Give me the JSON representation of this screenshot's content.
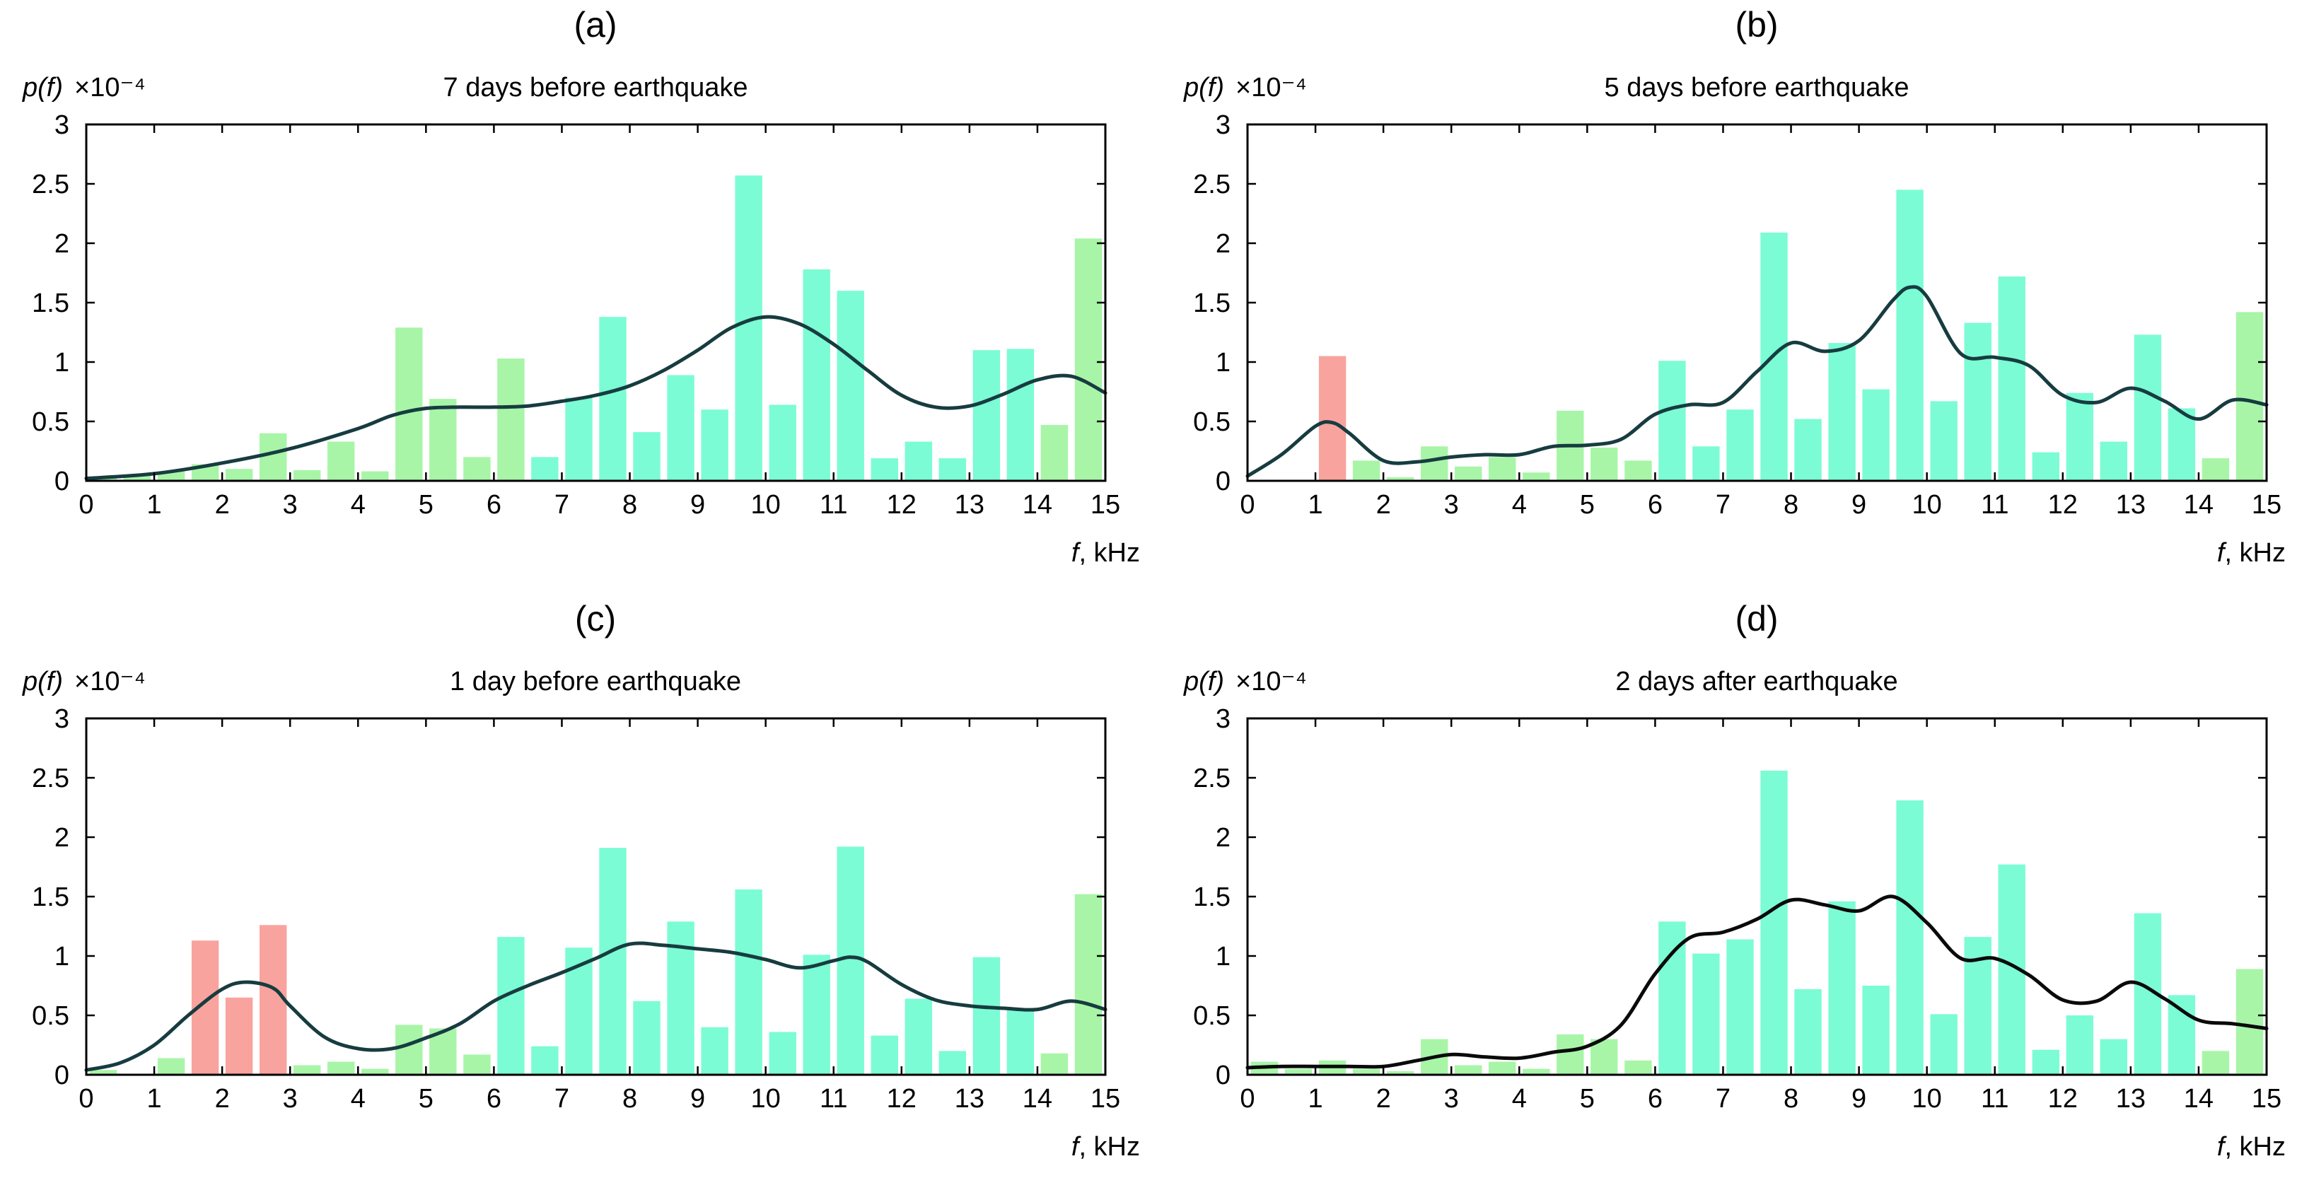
{
  "chart_data": [
    {
      "type": "bar",
      "panel_label": "(a)",
      "title": "7 days before earthquake",
      "ylabel": "p(f)",
      "ylabel_multiplier": "×10⁻⁴",
      "xlabel_var": "f",
      "xlabel_unit": ", kHz",
      "xlim": [
        0,
        15
      ],
      "ylim": [
        0,
        3
      ],
      "xticks": [
        "0",
        "1",
        "2",
        "3",
        "4",
        "5",
        "6",
        "7",
        "8",
        "9",
        "10",
        "11",
        "12",
        "13",
        "14",
        "15"
      ],
      "yticks": [
        "0",
        "0.5",
        "1",
        "1.5",
        "2",
        "2.5",
        "3"
      ],
      "bin_width": 0.5,
      "bars": [
        {
          "x": 0.25,
          "value": 0.02,
          "color": "#a8f5a8"
        },
        {
          "x": 0.75,
          "value": 0.04,
          "color": "#a8f5a8"
        },
        {
          "x": 1.25,
          "value": 0.08,
          "color": "#a8f5a8"
        },
        {
          "x": 1.75,
          "value": 0.14,
          "color": "#a8f5a8"
        },
        {
          "x": 2.25,
          "value": 0.1,
          "color": "#a8f5a8"
        },
        {
          "x": 2.75,
          "value": 0.4,
          "color": "#a8f5a8"
        },
        {
          "x": 3.25,
          "value": 0.09,
          "color": "#a8f5a8"
        },
        {
          "x": 3.75,
          "value": 0.33,
          "color": "#a8f5a8"
        },
        {
          "x": 4.25,
          "value": 0.08,
          "color": "#a8f5a8"
        },
        {
          "x": 4.75,
          "value": 1.29,
          "color": "#a8f5a8"
        },
        {
          "x": 5.25,
          "value": 0.69,
          "color": "#a8f5a8"
        },
        {
          "x": 5.75,
          "value": 0.2,
          "color": "#a8f5a8"
        },
        {
          "x": 6.25,
          "value": 1.03,
          "color": "#a8f5a8"
        },
        {
          "x": 6.75,
          "value": 0.2,
          "color": "#7cfcd4"
        },
        {
          "x": 7.25,
          "value": 0.7,
          "color": "#7cfcd4"
        },
        {
          "x": 7.75,
          "value": 1.38,
          "color": "#7cfcd4"
        },
        {
          "x": 8.25,
          "value": 0.41,
          "color": "#7cfcd4"
        },
        {
          "x": 8.75,
          "value": 0.89,
          "color": "#7cfcd4"
        },
        {
          "x": 9.25,
          "value": 0.6,
          "color": "#7cfcd4"
        },
        {
          "x": 9.75,
          "value": 2.57,
          "color": "#7cfcd4"
        },
        {
          "x": 10.25,
          "value": 0.64,
          "color": "#7cfcd4"
        },
        {
          "x": 10.75,
          "value": 1.78,
          "color": "#7cfcd4"
        },
        {
          "x": 11.25,
          "value": 1.6,
          "color": "#7cfcd4"
        },
        {
          "x": 11.75,
          "value": 0.19,
          "color": "#7cfcd4"
        },
        {
          "x": 12.25,
          "value": 0.33,
          "color": "#7cfcd4"
        },
        {
          "x": 12.75,
          "value": 0.19,
          "color": "#7cfcd4"
        },
        {
          "x": 13.25,
          "value": 1.1,
          "color": "#7cfcd4"
        },
        {
          "x": 13.75,
          "value": 1.11,
          "color": "#7cfcd4"
        },
        {
          "x": 14.25,
          "value": 0.47,
          "color": "#a8f5a8"
        },
        {
          "x": 14.75,
          "value": 2.04,
          "color": "#a8f5a8"
        }
      ],
      "curve": {
        "color": "#173c40",
        "x": [
          0,
          1,
          2,
          3,
          4,
          4.5,
          5,
          5.5,
          6,
          6.5,
          7,
          7.5,
          8,
          8.5,
          9,
          9.5,
          10,
          10.5,
          11,
          11.5,
          12,
          12.5,
          13,
          13.5,
          14,
          14.5,
          15
        ],
        "y": [
          0.02,
          0.06,
          0.15,
          0.27,
          0.44,
          0.55,
          0.61,
          0.62,
          0.62,
          0.63,
          0.67,
          0.72,
          0.8,
          0.93,
          1.1,
          1.29,
          1.38,
          1.32,
          1.15,
          0.93,
          0.72,
          0.62,
          0.63,
          0.73,
          0.85,
          0.88,
          0.74
        ]
      }
    },
    {
      "type": "bar",
      "panel_label": "(b)",
      "title": "5 days before earthquake",
      "ylabel": "p(f)",
      "ylabel_multiplier": "×10⁻⁴",
      "xlabel_var": "f",
      "xlabel_unit": ", kHz",
      "xlim": [
        0,
        15
      ],
      "ylim": [
        0,
        3
      ],
      "xticks": [
        "0",
        "1",
        "2",
        "3",
        "4",
        "5",
        "6",
        "7",
        "8",
        "9",
        "10",
        "11",
        "12",
        "13",
        "14",
        "15"
      ],
      "yticks": [
        "0",
        "0.5",
        "1",
        "1.5",
        "2",
        "2.5",
        "3"
      ],
      "bin_width": 0.5,
      "bars": [
        {
          "x": 1.25,
          "value": 1.05,
          "color": "#f8a39d"
        },
        {
          "x": 1.75,
          "value": 0.17,
          "color": "#a8f5a8"
        },
        {
          "x": 2.25,
          "value": 0.03,
          "color": "#a8f5a8"
        },
        {
          "x": 2.75,
          "value": 0.29,
          "color": "#a8f5a8"
        },
        {
          "x": 3.25,
          "value": 0.12,
          "color": "#a8f5a8"
        },
        {
          "x": 3.75,
          "value": 0.2,
          "color": "#a8f5a8"
        },
        {
          "x": 4.25,
          "value": 0.07,
          "color": "#a8f5a8"
        },
        {
          "x": 4.75,
          "value": 0.59,
          "color": "#a8f5a8"
        },
        {
          "x": 5.25,
          "value": 0.28,
          "color": "#a8f5a8"
        },
        {
          "x": 5.75,
          "value": 0.17,
          "color": "#a8f5a8"
        },
        {
          "x": 6.25,
          "value": 1.01,
          "color": "#7cfcd4"
        },
        {
          "x": 6.75,
          "value": 0.29,
          "color": "#7cfcd4"
        },
        {
          "x": 7.25,
          "value": 0.6,
          "color": "#7cfcd4"
        },
        {
          "x": 7.75,
          "value": 2.09,
          "color": "#7cfcd4"
        },
        {
          "x": 8.25,
          "value": 0.52,
          "color": "#7cfcd4"
        },
        {
          "x": 8.75,
          "value": 1.16,
          "color": "#7cfcd4"
        },
        {
          "x": 9.25,
          "value": 0.77,
          "color": "#7cfcd4"
        },
        {
          "x": 9.75,
          "value": 2.45,
          "color": "#7cfcd4"
        },
        {
          "x": 10.25,
          "value": 0.67,
          "color": "#7cfcd4"
        },
        {
          "x": 10.75,
          "value": 1.33,
          "color": "#7cfcd4"
        },
        {
          "x": 11.25,
          "value": 1.72,
          "color": "#7cfcd4"
        },
        {
          "x": 11.75,
          "value": 0.24,
          "color": "#7cfcd4"
        },
        {
          "x": 12.25,
          "value": 0.74,
          "color": "#7cfcd4"
        },
        {
          "x": 12.75,
          "value": 0.33,
          "color": "#7cfcd4"
        },
        {
          "x": 13.25,
          "value": 1.23,
          "color": "#7cfcd4"
        },
        {
          "x": 13.75,
          "value": 0.61,
          "color": "#7cfcd4"
        },
        {
          "x": 14.25,
          "value": 0.19,
          "color": "#a8f5a8"
        },
        {
          "x": 14.75,
          "value": 1.42,
          "color": "#a8f5a8"
        }
      ],
      "curve": {
        "color": "#173c40",
        "x": [
          0,
          0.5,
          1,
          1.25,
          1.5,
          2,
          2.5,
          3,
          3.5,
          4,
          4.5,
          5,
          5.5,
          6,
          6.5,
          7,
          7.5,
          8,
          8.5,
          9,
          9.5,
          9.75,
          10,
          10.5,
          11,
          11.5,
          12,
          12.5,
          13,
          13.5,
          14,
          14.5,
          15
        ],
        "y": [
          0.04,
          0.22,
          0.46,
          0.49,
          0.4,
          0.17,
          0.16,
          0.2,
          0.22,
          0.22,
          0.29,
          0.3,
          0.35,
          0.56,
          0.64,
          0.66,
          0.92,
          1.16,
          1.09,
          1.18,
          1.52,
          1.63,
          1.55,
          1.07,
          1.04,
          0.97,
          0.72,
          0.66,
          0.78,
          0.67,
          0.52,
          0.68,
          0.64
        ]
      }
    },
    {
      "type": "bar",
      "panel_label": "(c)",
      "title": "1 day before earthquake",
      "ylabel": "p(f)",
      "ylabel_multiplier": "×10⁻⁴",
      "xlabel_var": "f",
      "xlabel_unit": ", kHz",
      "xlim": [
        0,
        15
      ],
      "ylim": [
        0,
        3
      ],
      "xticks": [
        "0",
        "1",
        "2",
        "3",
        "4",
        "5",
        "6",
        "7",
        "8",
        "9",
        "10",
        "11",
        "12",
        "13",
        "14",
        "15"
      ],
      "yticks": [
        "0",
        "0.5",
        "1",
        "1.5",
        "2",
        "2.5",
        "3"
      ],
      "bin_width": 0.5,
      "bars": [
        {
          "x": 0.25,
          "value": 0.04,
          "color": "#a8f5a8"
        },
        {
          "x": 1.25,
          "value": 0.14,
          "color": "#a8f5a8"
        },
        {
          "x": 1.75,
          "value": 1.13,
          "color": "#f8a39d"
        },
        {
          "x": 2.25,
          "value": 0.65,
          "color": "#f8a39d"
        },
        {
          "x": 2.75,
          "value": 1.26,
          "color": "#f8a39d"
        },
        {
          "x": 3.25,
          "value": 0.08,
          "color": "#a8f5a8"
        },
        {
          "x": 3.75,
          "value": 0.11,
          "color": "#a8f5a8"
        },
        {
          "x": 4.25,
          "value": 0.05,
          "color": "#a8f5a8"
        },
        {
          "x": 4.75,
          "value": 0.42,
          "color": "#a8f5a8"
        },
        {
          "x": 5.25,
          "value": 0.39,
          "color": "#a8f5a8"
        },
        {
          "x": 5.75,
          "value": 0.17,
          "color": "#a8f5a8"
        },
        {
          "x": 6.25,
          "value": 1.16,
          "color": "#7cfcd4"
        },
        {
          "x": 6.75,
          "value": 0.24,
          "color": "#7cfcd4"
        },
        {
          "x": 7.25,
          "value": 1.07,
          "color": "#7cfcd4"
        },
        {
          "x": 7.75,
          "value": 1.91,
          "color": "#7cfcd4"
        },
        {
          "x": 8.25,
          "value": 0.62,
          "color": "#7cfcd4"
        },
        {
          "x": 8.75,
          "value": 1.29,
          "color": "#7cfcd4"
        },
        {
          "x": 9.25,
          "value": 0.4,
          "color": "#7cfcd4"
        },
        {
          "x": 9.75,
          "value": 1.56,
          "color": "#7cfcd4"
        },
        {
          "x": 10.25,
          "value": 0.36,
          "color": "#7cfcd4"
        },
        {
          "x": 10.75,
          "value": 1.01,
          "color": "#7cfcd4"
        },
        {
          "x": 11.25,
          "value": 1.92,
          "color": "#7cfcd4"
        },
        {
          "x": 11.75,
          "value": 0.33,
          "color": "#7cfcd4"
        },
        {
          "x": 12.25,
          "value": 0.64,
          "color": "#7cfcd4"
        },
        {
          "x": 12.75,
          "value": 0.2,
          "color": "#7cfcd4"
        },
        {
          "x": 13.25,
          "value": 0.99,
          "color": "#7cfcd4"
        },
        {
          "x": 13.75,
          "value": 0.56,
          "color": "#7cfcd4"
        },
        {
          "x": 14.25,
          "value": 0.18,
          "color": "#a8f5a8"
        },
        {
          "x": 14.75,
          "value": 1.52,
          "color": "#a8f5a8"
        }
      ],
      "curve": {
        "color": "#173c40",
        "x": [
          0,
          0.5,
          1,
          1.5,
          2,
          2.35,
          2.75,
          3,
          3.5,
          4,
          4.5,
          5,
          5.5,
          6,
          6.5,
          7,
          7.5,
          8,
          8.5,
          9,
          9.5,
          10,
          10.5,
          11,
          11.25,
          11.5,
          12,
          12.5,
          13,
          13.5,
          14,
          14.5,
          15
        ],
        "y": [
          0.04,
          0.1,
          0.25,
          0.5,
          0.72,
          0.78,
          0.73,
          0.58,
          0.32,
          0.22,
          0.22,
          0.31,
          0.43,
          0.62,
          0.75,
          0.86,
          0.98,
          1.1,
          1.09,
          1.06,
          1.03,
          0.97,
          0.9,
          0.96,
          0.99,
          0.95,
          0.76,
          0.63,
          0.58,
          0.56,
          0.55,
          0.62,
          0.55
        ]
      }
    },
    {
      "type": "bar",
      "panel_label": "(d)",
      "title": "2 days after earthquake",
      "ylabel": "p(f)",
      "ylabel_multiplier": "×10⁻⁴",
      "xlabel_var": "f",
      "xlabel_unit": ", kHz",
      "xlim": [
        0,
        15
      ],
      "ylim": [
        0,
        3
      ],
      "xticks": [
        "0",
        "1",
        "2",
        "3",
        "4",
        "5",
        "6",
        "7",
        "8",
        "9",
        "10",
        "11",
        "12",
        "13",
        "14",
        "15"
      ],
      "yticks": [
        "0",
        "0.5",
        "1",
        "1.5",
        "2",
        "2.5",
        "3"
      ],
      "bin_width": 0.5,
      "bars": [
        {
          "x": 0.25,
          "value": 0.11,
          "color": "#a8f5a8"
        },
        {
          "x": 0.75,
          "value": 0.05,
          "color": "#a8f5a8"
        },
        {
          "x": 1.25,
          "value": 0.12,
          "color": "#a8f5a8"
        },
        {
          "x": 1.75,
          "value": 0.05,
          "color": "#a8f5a8"
        },
        {
          "x": 2.25,
          "value": 0.03,
          "color": "#a8f5a8"
        },
        {
          "x": 2.75,
          "value": 0.3,
          "color": "#a8f5a8"
        },
        {
          "x": 3.25,
          "value": 0.08,
          "color": "#a8f5a8"
        },
        {
          "x": 3.75,
          "value": 0.11,
          "color": "#a8f5a8"
        },
        {
          "x": 4.25,
          "value": 0.05,
          "color": "#a8f5a8"
        },
        {
          "x": 4.75,
          "value": 0.34,
          "color": "#a8f5a8"
        },
        {
          "x": 5.25,
          "value": 0.3,
          "color": "#a8f5a8"
        },
        {
          "x": 5.75,
          "value": 0.12,
          "color": "#a8f5a8"
        },
        {
          "x": 6.25,
          "value": 1.29,
          "color": "#7cfcd4"
        },
        {
          "x": 6.75,
          "value": 1.02,
          "color": "#7cfcd4"
        },
        {
          "x": 7.25,
          "value": 1.14,
          "color": "#7cfcd4"
        },
        {
          "x": 7.75,
          "value": 2.56,
          "color": "#7cfcd4"
        },
        {
          "x": 8.25,
          "value": 0.72,
          "color": "#7cfcd4"
        },
        {
          "x": 8.75,
          "value": 1.46,
          "color": "#7cfcd4"
        },
        {
          "x": 9.25,
          "value": 0.75,
          "color": "#7cfcd4"
        },
        {
          "x": 9.75,
          "value": 2.31,
          "color": "#7cfcd4"
        },
        {
          "x": 10.25,
          "value": 0.51,
          "color": "#7cfcd4"
        },
        {
          "x": 10.75,
          "value": 1.16,
          "color": "#7cfcd4"
        },
        {
          "x": 11.25,
          "value": 1.77,
          "color": "#7cfcd4"
        },
        {
          "x": 11.75,
          "value": 0.21,
          "color": "#7cfcd4"
        },
        {
          "x": 12.25,
          "value": 0.5,
          "color": "#7cfcd4"
        },
        {
          "x": 12.75,
          "value": 0.3,
          "color": "#7cfcd4"
        },
        {
          "x": 13.25,
          "value": 1.36,
          "color": "#7cfcd4"
        },
        {
          "x": 13.75,
          "value": 0.67,
          "color": "#7cfcd4"
        },
        {
          "x": 14.25,
          "value": 0.2,
          "color": "#a8f5a8"
        },
        {
          "x": 14.75,
          "value": 0.89,
          "color": "#a8f5a8"
        }
      ],
      "curve": {
        "color": "#0a0a0a",
        "x": [
          0,
          0.5,
          1,
          1.5,
          2,
          2.5,
          3,
          3.5,
          4,
          4.5,
          5,
          5.5,
          6,
          6.5,
          7,
          7.5,
          8,
          8.5,
          9,
          9.5,
          10,
          10.5,
          11,
          11.5,
          12,
          12.5,
          13,
          13.5,
          14,
          14.5,
          15
        ],
        "y": [
          0.06,
          0.07,
          0.07,
          0.07,
          0.07,
          0.12,
          0.17,
          0.15,
          0.14,
          0.19,
          0.24,
          0.42,
          0.85,
          1.15,
          1.2,
          1.31,
          1.47,
          1.43,
          1.38,
          1.5,
          1.28,
          0.98,
          0.98,
          0.84,
          0.63,
          0.62,
          0.78,
          0.64,
          0.46,
          0.43,
          0.39
        ]
      }
    }
  ]
}
